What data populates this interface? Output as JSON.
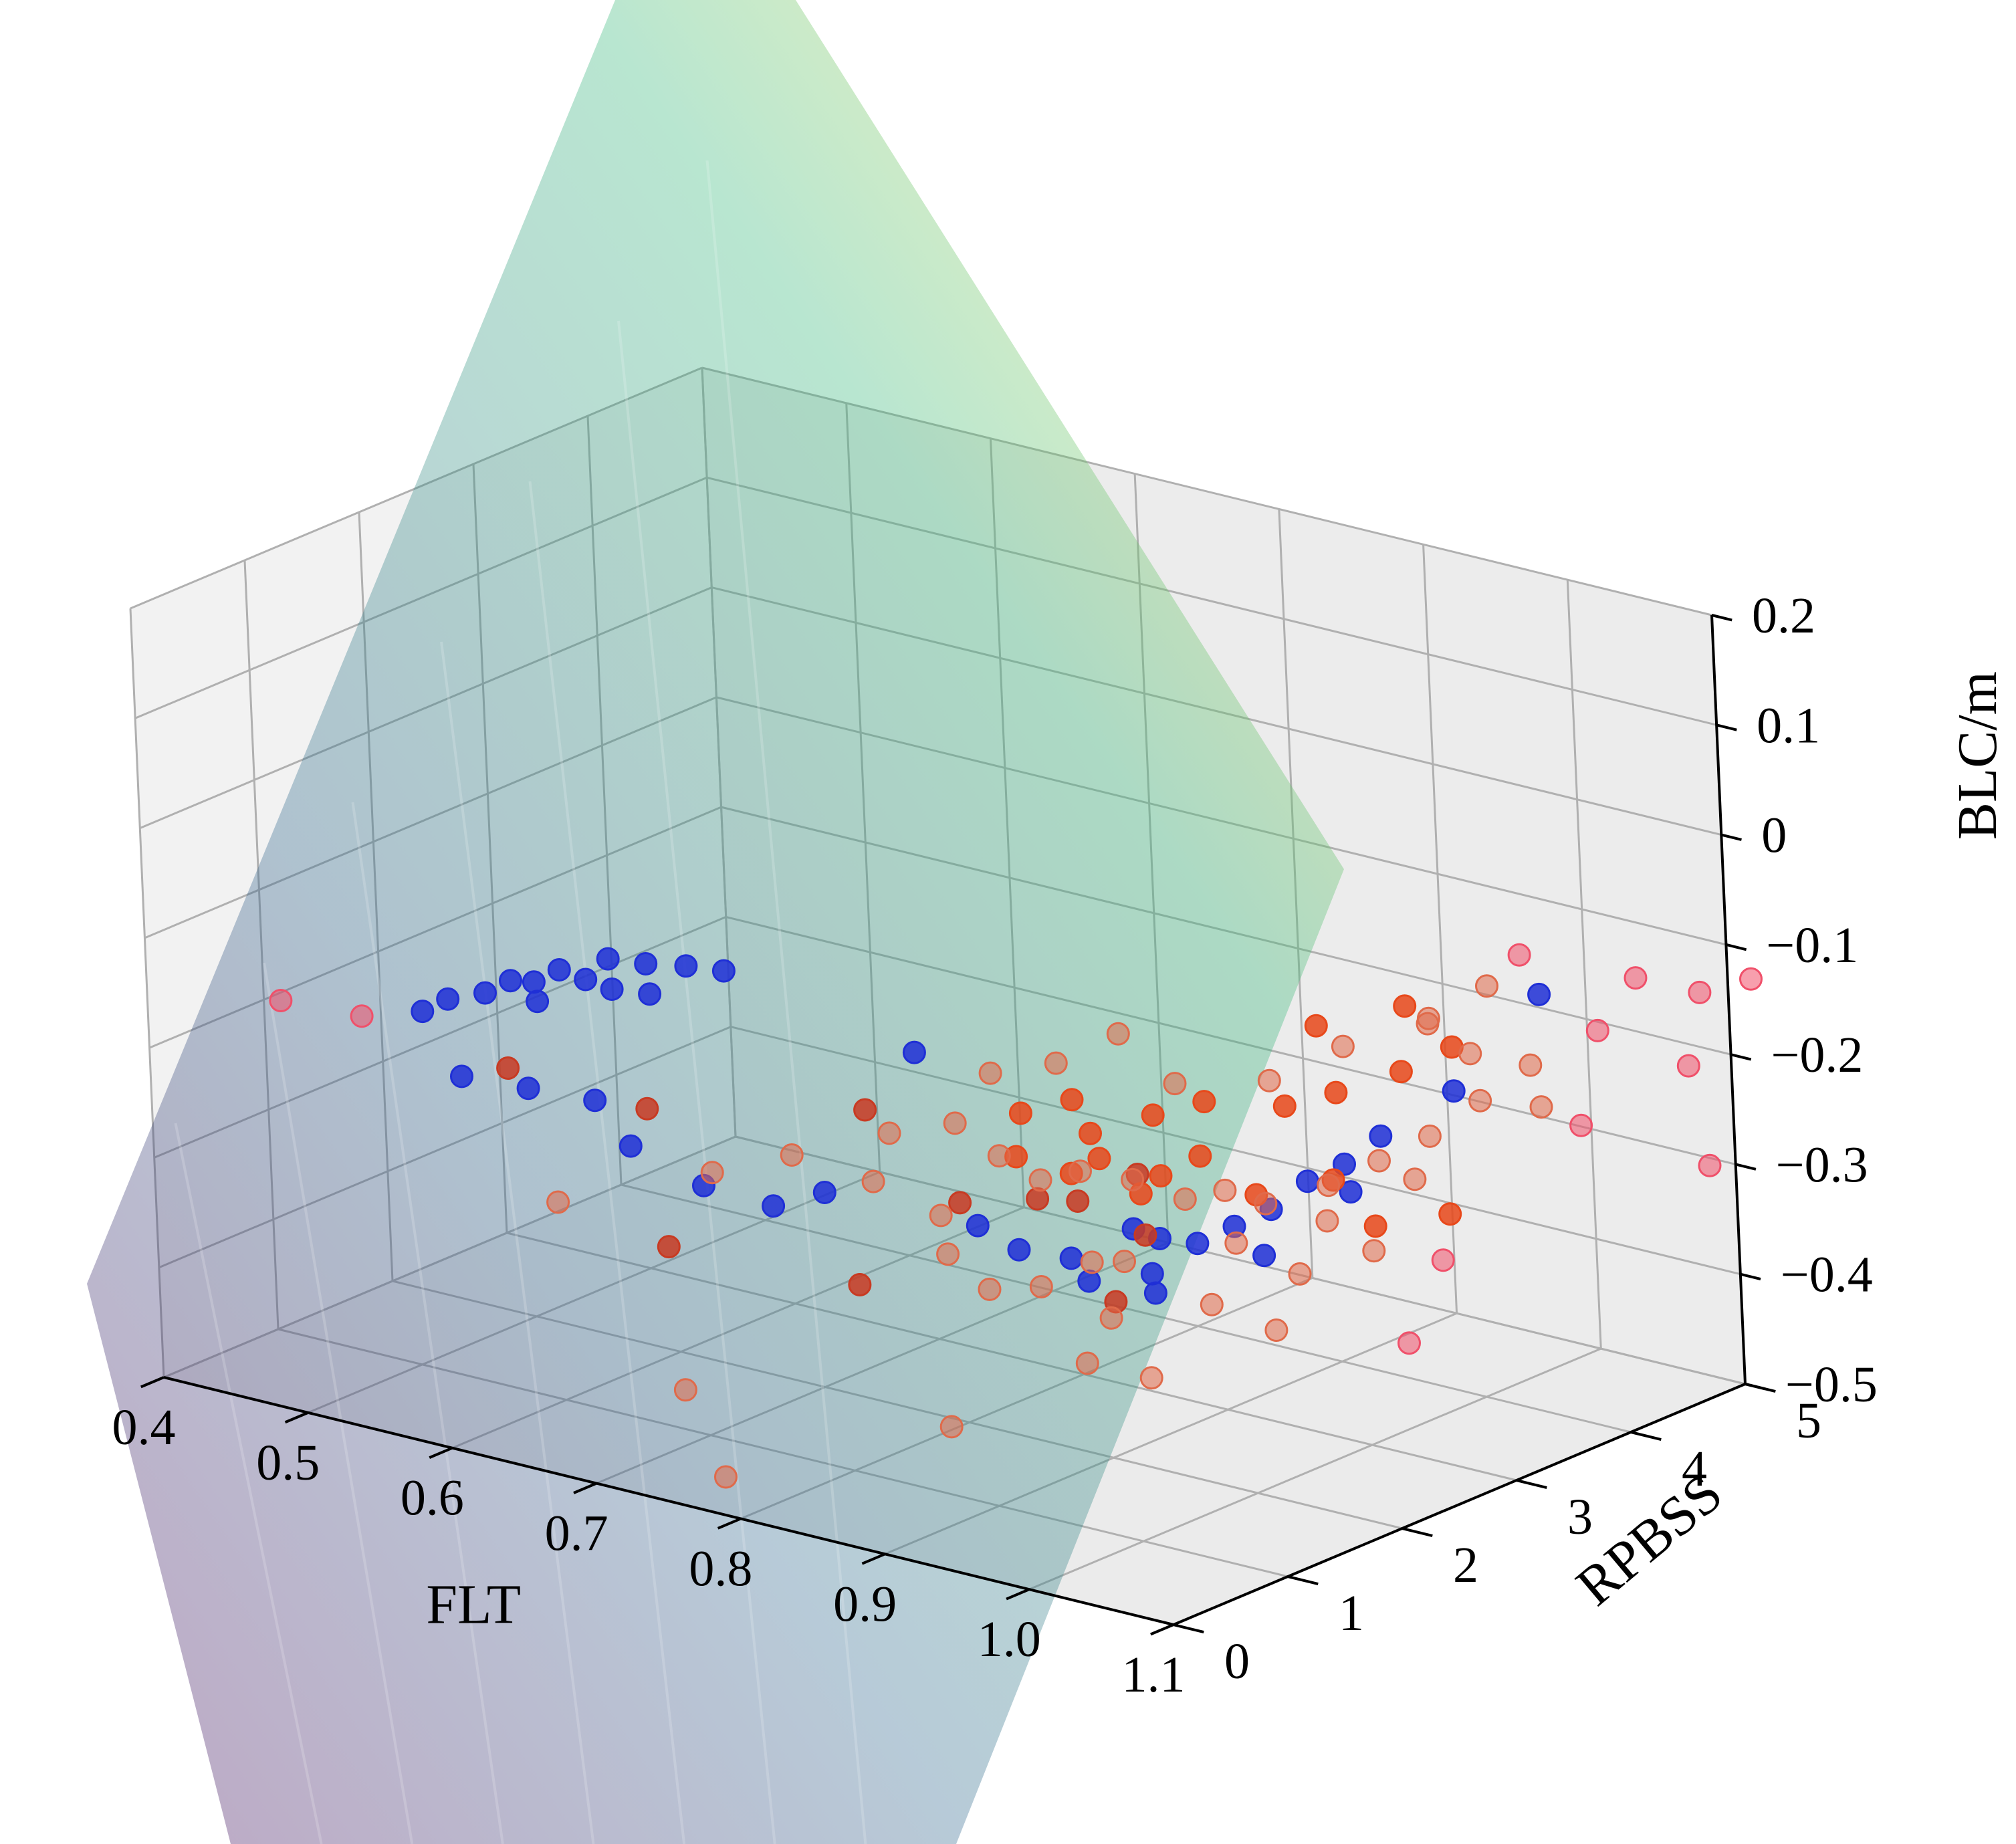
{
  "chart_data": {
    "type": "scatter",
    "projection": "3d",
    "title": "",
    "axes": {
      "x": {
        "label": "FLT",
        "range": [
          0.4,
          1.1
        ],
        "ticks": [
          "0.4",
          "0.5",
          "0.6",
          "0.7",
          "0.8",
          "0.9",
          "1.0",
          "1.1"
        ]
      },
      "y": {
        "label": "RPBSS",
        "range": [
          0,
          5
        ],
        "ticks": [
          "0",
          "1",
          "2",
          "3",
          "4",
          "5"
        ]
      },
      "z": {
        "label": "BLC/m",
        "range": [
          -0.5,
          0.2
        ],
        "ticks": [
          "−0.5",
          "−0.4",
          "−0.3",
          "−0.2",
          "−0.1",
          "0",
          "0.1",
          "0.2"
        ]
      }
    },
    "grid": true,
    "legend": "none",
    "surface": {
      "type": "plane",
      "colormap": "viridis",
      "alpha": 0.35
    },
    "colors": {
      "pane_left": "#f2f2f2",
      "pane_back": "#ececec",
      "pane_floor": "#ebebeb",
      "surface_low": "#440154",
      "surface_mid1": "#31688e",
      "surface_mid2": "#35b779",
      "surface_high": "#fde725",
      "blue": "#1f2fd6",
      "red_dark": "#c83a22",
      "orange": "#e8481a",
      "pink": "#f0506a",
      "salmon": "#e06a4a"
    },
    "series": [
      {
        "color_key": "blue",
        "points": [
          [
            0.47,
            1.5,
            -0.21
          ],
          [
            0.48,
            1.6,
            -0.2
          ],
          [
            0.49,
            1.8,
            -0.2
          ],
          [
            0.5,
            1.9,
            -0.19
          ],
          [
            0.5,
            2.1,
            -0.2
          ],
          [
            0.51,
            2.0,
            -0.21
          ],
          [
            0.51,
            2.2,
            -0.19
          ],
          [
            0.52,
            2.3,
            -0.2
          ],
          [
            0.52,
            2.5,
            -0.19
          ],
          [
            0.53,
            2.4,
            -0.21
          ],
          [
            0.53,
            2.7,
            -0.2
          ],
          [
            0.54,
            2.6,
            -0.22
          ],
          [
            0.55,
            2.8,
            -0.2
          ],
          [
            0.56,
            3.0,
            -0.21
          ],
          [
            0.52,
            1.2,
            -0.24
          ],
          [
            0.55,
            1.4,
            -0.25
          ],
          [
            0.58,
            1.6,
            -0.26
          ],
          [
            0.62,
            1.4,
            -0.28
          ],
          [
            0.67,
            1.4,
            -0.3
          ],
          [
            0.71,
            1.5,
            -0.31
          ],
          [
            0.74,
            2.4,
            -0.2
          ],
          [
            0.73,
            1.7,
            -0.3
          ],
          [
            0.88,
            2.5,
            -0.32
          ],
          [
            0.89,
            2.6,
            -0.33
          ],
          [
            0.9,
            2.8,
            -0.34
          ],
          [
            0.91,
            3.0,
            -0.33
          ],
          [
            0.92,
            3.2,
            -0.32
          ],
          [
            0.93,
            3.4,
            -0.3
          ],
          [
            0.94,
            3.6,
            -0.29
          ],
          [
            0.9,
            2.4,
            -0.35
          ],
          [
            0.91,
            2.3,
            -0.36
          ],
          [
            0.95,
            3.8,
            -0.27
          ],
          [
            0.97,
            4.2,
            -0.24
          ],
          [
            0.86,
            2.2,
            -0.34
          ],
          [
            0.84,
            2.0,
            -0.33
          ],
          [
            0.82,
            1.9,
            -0.31
          ],
          [
            0.88,
            2.1,
            -0.35
          ],
          [
            0.93,
            3.0,
            -0.35
          ],
          [
            0.96,
            3.4,
            -0.3
          ],
          [
            1.0,
            4.6,
            -0.16
          ]
        ]
      },
      {
        "color_key": "red_dark",
        "points": [
          [
            0.52,
            1.6,
            -0.25
          ],
          [
            0.6,
            1.8,
            -0.27
          ],
          [
            0.72,
            2.2,
            -0.25
          ],
          [
            0.66,
            1.2,
            -0.35
          ],
          [
            0.76,
            1.6,
            -0.37
          ],
          [
            0.8,
            2.0,
            -0.3
          ],
          [
            0.85,
            2.4,
            -0.3
          ],
          [
            0.88,
            2.6,
            -0.33
          ],
          [
            0.83,
            2.3,
            -0.3
          ],
          [
            0.86,
            2.8,
            -0.29
          ],
          [
            0.89,
            2.2,
            -0.37
          ]
        ]
      },
      {
        "color_key": "orange",
        "points": [
          [
            0.78,
            2.8,
            -0.26
          ],
          [
            0.8,
            3.0,
            -0.25
          ],
          [
            0.82,
            2.9,
            -0.27
          ],
          [
            0.84,
            3.2,
            -0.26
          ],
          [
            0.86,
            3.4,
            -0.25
          ],
          [
            0.88,
            3.1,
            -0.28
          ],
          [
            0.9,
            3.6,
            -0.25
          ],
          [
            0.92,
            3.8,
            -0.24
          ],
          [
            0.95,
            4.0,
            -0.22
          ],
          [
            0.97,
            4.2,
            -0.2
          ],
          [
            0.85,
            2.6,
            -0.27
          ],
          [
            0.87,
            2.7,
            -0.3
          ],
          [
            0.91,
            3.2,
            -0.31
          ],
          [
            0.94,
            3.5,
            -0.3
          ],
          [
            0.8,
            2.5,
            -0.28
          ],
          [
            0.83,
            2.6,
            -0.29
          ],
          [
            0.86,
            3.0,
            -0.3
          ],
          [
            0.93,
            4.3,
            -0.18
          ],
          [
            0.9,
            3.9,
            -0.19
          ],
          [
            0.96,
            3.6,
            -0.34
          ],
          [
            0.98,
            4.0,
            -0.34
          ]
        ]
      },
      {
        "color_key": "pink",
        "points": [
          [
            0.42,
            0.9,
            -0.19
          ],
          [
            0.46,
            1.1,
            -0.2
          ],
          [
            1.02,
            4.2,
            -0.1
          ],
          [
            1.06,
            4.7,
            -0.13
          ],
          [
            1.08,
            5.0,
            -0.15
          ],
          [
            1.1,
            5.2,
            -0.14
          ],
          [
            1.04,
            4.6,
            -0.18
          ],
          [
            1.07,
            5.0,
            -0.22
          ],
          [
            1.05,
            4.3,
            -0.25
          ],
          [
            1.09,
            4.9,
            -0.3
          ],
          [
            0.99,
            3.8,
            -0.37
          ],
          [
            0.98,
            3.6,
            -0.44
          ]
        ]
      },
      {
        "color_key": "salmon",
        "points": [
          [
            0.72,
            2.4,
            -0.28
          ],
          [
            0.75,
            2.6,
            -0.27
          ],
          [
            0.78,
            2.6,
            -0.29
          ],
          [
            0.8,
            2.7,
            -0.31
          ],
          [
            0.82,
            2.8,
            -0.3
          ],
          [
            0.84,
            3.0,
            -0.31
          ],
          [
            0.86,
            3.2,
            -0.33
          ],
          [
            0.88,
            3.3,
            -0.32
          ],
          [
            0.9,
            3.4,
            -0.33
          ],
          [
            0.92,
            3.7,
            -0.32
          ],
          [
            0.94,
            3.9,
            -0.3
          ],
          [
            0.96,
            4.1,
            -0.28
          ],
          [
            0.98,
            4.3,
            -0.25
          ],
          [
            1.0,
            4.5,
            -0.22
          ],
          [
            0.98,
            4.4,
            -0.15
          ],
          [
            0.97,
            4.0,
            -0.17
          ],
          [
            0.85,
            2.5,
            -0.36
          ],
          [
            0.83,
            2.3,
            -0.38
          ],
          [
            0.87,
            2.4,
            -0.4
          ],
          [
            0.9,
            2.9,
            -0.4
          ],
          [
            0.93,
            3.3,
            -0.38
          ],
          [
            0.95,
            3.7,
            -0.37
          ],
          [
            0.81,
            2.1,
            -0.38
          ],
          [
            0.79,
            2.0,
            -0.35
          ],
          [
            0.77,
            2.2,
            -0.33
          ],
          [
            0.74,
            2.0,
            -0.3
          ],
          [
            0.7,
            1.8,
            -0.28
          ],
          [
            0.66,
            1.6,
            -0.3
          ],
          [
            0.6,
            1.0,
            -0.32
          ],
          [
            0.7,
            0.8,
            -0.45
          ],
          [
            0.75,
            0.5,
            -0.5
          ],
          [
            0.88,
            2.6,
            -0.46
          ],
          [
            0.86,
            2.3,
            -0.44
          ],
          [
            0.92,
            3.2,
            -0.43
          ],
          [
            0.82,
            1.6,
            -0.48
          ],
          [
            0.84,
            3.4,
            -0.24
          ],
          [
            0.89,
            3.6,
            -0.23
          ],
          [
            0.91,
            4.0,
            -0.21
          ],
          [
            0.79,
            3.0,
            -0.22
          ],
          [
            0.76,
            2.8,
            -0.23
          ],
          [
            0.81,
            3.3,
            -0.2
          ],
          [
            0.93,
            4.5,
            -0.2
          ],
          [
            0.95,
            4.6,
            -0.23
          ],
          [
            0.99,
            4.7,
            -0.27
          ],
          [
            0.94,
            4.2,
            -0.33
          ],
          [
            0.91,
            3.8,
            -0.36
          ],
          [
            0.87,
            3.5,
            -0.38
          ],
          [
            0.84,
            2.9,
            -0.38
          ]
        ]
      }
    ]
  }
}
